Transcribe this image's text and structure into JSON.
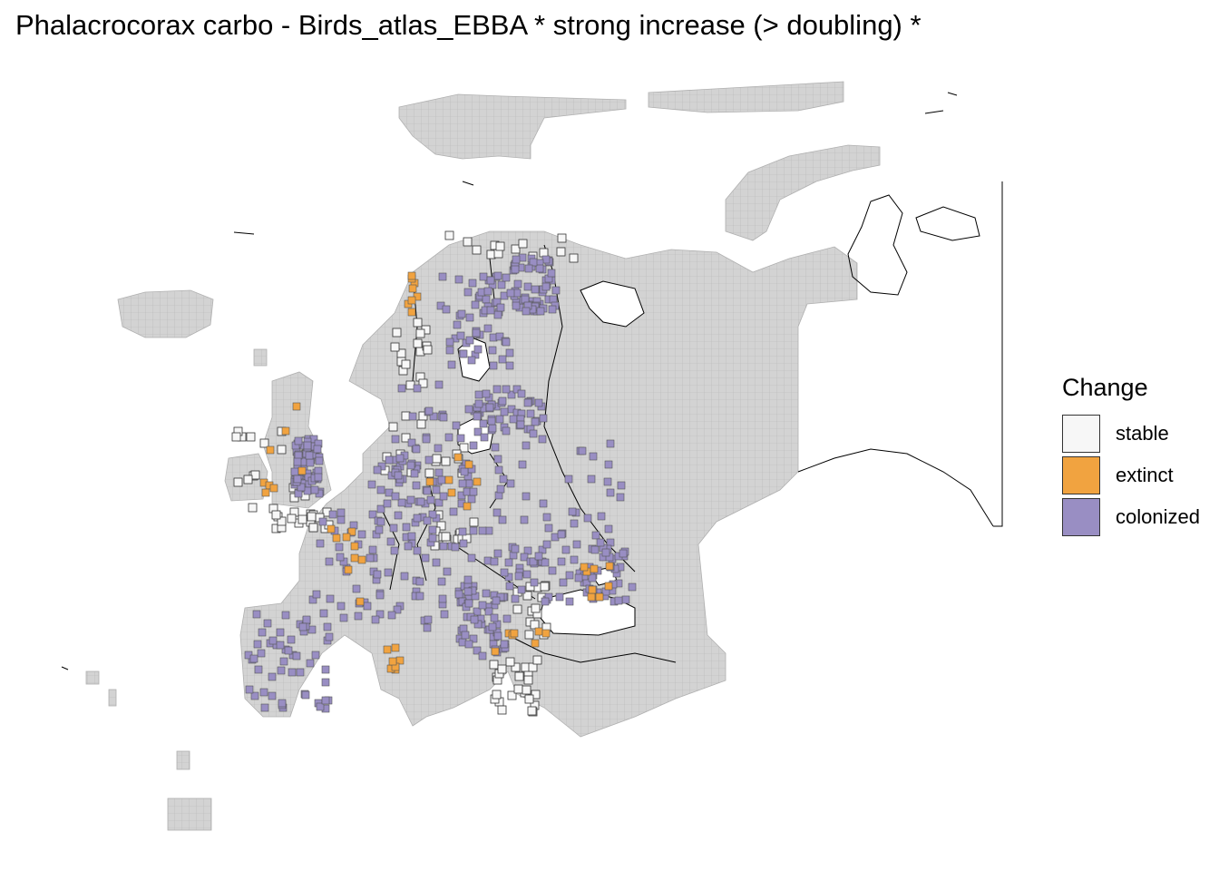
{
  "title": "Phalacrocorax carbo - Birds_atlas_EBBA * strong increase (> doubling) *",
  "legend": {
    "title": "Change",
    "items": [
      {
        "label": "stable",
        "color": "#f7f7f7"
      },
      {
        "label": "extinct",
        "color": "#f1a340"
      },
      {
        "label": "colonized",
        "color": "#998ec3"
      }
    ]
  },
  "colors": {
    "no_data": "#d3d3d3",
    "grid_line": "#a6a6a6",
    "border": "#000000"
  }
}
